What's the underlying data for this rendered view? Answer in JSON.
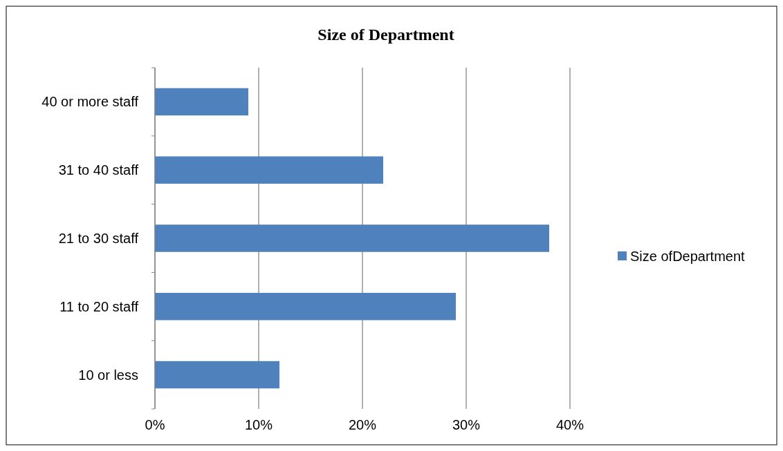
{
  "chart_data": {
    "type": "bar",
    "orientation": "horizontal",
    "title": "Size of Department",
    "categories": [
      "40 or more staff",
      "31 to 40 staff",
      "21 to 30 staff",
      "11 to 20 staff",
      "10 or less"
    ],
    "series": [
      {
        "name": "Size ofDepartment",
        "color": "#4f81bd",
        "values": [
          9,
          22,
          38,
          29,
          12
        ]
      }
    ],
    "xlim": [
      0,
      40
    ],
    "xticks": [
      {
        "value": 0,
        "label": "0%"
      },
      {
        "value": 10,
        "label": "10%"
      },
      {
        "value": 20,
        "label": "20%"
      },
      {
        "value": 30,
        "label": "30%"
      },
      {
        "value": 40,
        "label": "40%"
      }
    ],
    "grid": "x",
    "legend": "right"
  }
}
